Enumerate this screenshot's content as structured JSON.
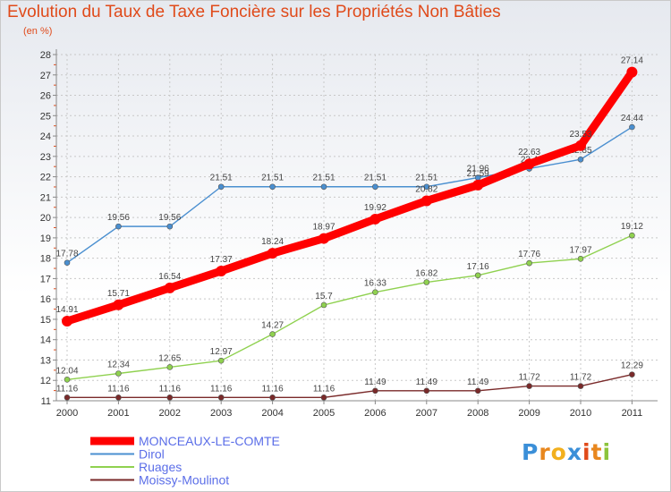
{
  "title": "Evolution du Taux de Taxe Foncière sur les Propriétés Non Bâties",
  "unit_label": "(en %)",
  "logo": {
    "text": "Proxiti",
    "letters": [
      "P",
      "r",
      "o",
      "x",
      "i",
      "t",
      "i"
    ],
    "colors": [
      "#3b8fd8",
      "#e8871e",
      "#f2b01e",
      "#3b8fd8",
      "#e04a1a",
      "#e8871e",
      "#8cc43c"
    ]
  },
  "chart_data": {
    "type": "line",
    "title": "Evolution du Taux de Taxe Foncière sur les Propriétés Non Bâties",
    "xlabel": "",
    "ylabel": "(en %)",
    "ylim": [
      11,
      28
    ],
    "x": [
      "2000",
      "2001",
      "2002",
      "2003",
      "2004",
      "2005",
      "2006",
      "2007",
      "2008",
      "2009",
      "2010",
      "2011"
    ],
    "y_ticks": [
      "11",
      "12",
      "13",
      "14",
      "15",
      "16",
      "17",
      "18",
      "19",
      "20",
      "21",
      "22",
      "23",
      "24",
      "25",
      "26",
      "27",
      "28"
    ],
    "series": [
      {
        "name": "Moissy-Moulinot",
        "color": "#7a2a2a",
        "weight": "thin",
        "values": [
          11.16,
          11.16,
          11.16,
          11.16,
          11.16,
          11.16,
          11.49,
          11.49,
          11.49,
          11.72,
          11.72,
          12.29
        ],
        "labels": [
          "11.16",
          "11.16",
          "11.16",
          "11.16",
          "11.16",
          "11.16",
          "11.49",
          "11.49",
          "11.49",
          "11.72",
          "11.72",
          "12.29"
        ]
      },
      {
        "name": "Ruages",
        "color": "#8fd14f",
        "weight": "thin",
        "values": [
          12.04,
          12.34,
          12.65,
          12.97,
          14.27,
          15.7,
          16.33,
          16.82,
          17.16,
          17.76,
          17.97,
          19.12
        ],
        "labels": [
          "12.04",
          "12.34",
          "12.65",
          "12.97",
          "14.27",
          "15.7",
          "16.33",
          "16.82",
          "17.16",
          "17.76",
          "17.97",
          "19.12"
        ]
      },
      {
        "name": "Dirol",
        "color": "#4a8fd0",
        "weight": "thin",
        "values": [
          17.78,
          19.56,
          19.56,
          21.51,
          21.51,
          21.51,
          21.51,
          21.51,
          21.96,
          22.4,
          22.85,
          24.44
        ],
        "labels": [
          "17.78",
          "19.56",
          "19.56",
          "21.51",
          "21.51",
          "21.51",
          "21.51",
          "21.51",
          "21.96",
          "22.4",
          "22.85",
          "24.44"
        ]
      },
      {
        "name": "MONCEAUX-LE-COMTE",
        "color": "#ff0000",
        "weight": "thick",
        "values": [
          14.91,
          15.71,
          16.54,
          17.37,
          18.24,
          18.97,
          19.92,
          20.82,
          21.59,
          22.63,
          23.53,
          27.14
        ],
        "labels": [
          "14.91",
          "15.71",
          "16.54",
          "17.37",
          "18.24",
          "18.97",
          "19.92",
          "20.82",
          "21.59",
          "22.63",
          "23.53",
          "27.14"
        ]
      }
    ],
    "legend": {
      "placement": "bottom-left",
      "entries": [
        {
          "name": "MONCEAUX-LE-COMTE",
          "color": "#ff0000",
          "text_color": "#5b6ee8",
          "weight": "thick"
        },
        {
          "name": "Dirol",
          "color": "#4a8fd0",
          "text_color": "#5b6ee8",
          "weight": "thin"
        },
        {
          "name": "Ruages",
          "color": "#8fd14f",
          "text_color": "#5b6ee8",
          "weight": "thin"
        },
        {
          "name": "Moissy-Moulinot",
          "color": "#7a2a2a",
          "text_color": "#5b6ee8",
          "weight": "thin"
        }
      ]
    },
    "grid": true
  }
}
